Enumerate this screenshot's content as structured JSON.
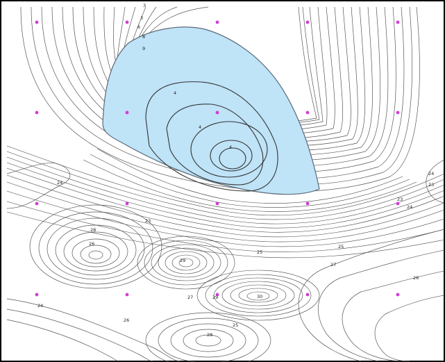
{
  "map": {
    "water_color": "#bfe3f7",
    "marker_color": "#d43cd6",
    "labels": [
      {
        "text": "3"
      },
      {
        "text": "6"
      },
      {
        "text": "8"
      },
      {
        "text": "9"
      },
      {
        "text": "4"
      },
      {
        "text": "4"
      },
      {
        "text": "4"
      },
      {
        "text": "3"
      },
      {
        "text": "24"
      },
      {
        "text": "23"
      },
      {
        "text": "24"
      },
      {
        "text": "23"
      },
      {
        "text": "24"
      },
      {
        "text": "23"
      },
      {
        "text": "25"
      },
      {
        "text": "28"
      },
      {
        "text": "26"
      },
      {
        "text": "25"
      },
      {
        "text": "27"
      },
      {
        "text": "26"
      },
      {
        "text": "29"
      },
      {
        "text": "27"
      },
      {
        "text": "29"
      },
      {
        "text": "30"
      },
      {
        "text": "28"
      },
      {
        "text": "24"
      },
      {
        "text": "26"
      },
      {
        "text": "25"
      }
    ]
  }
}
